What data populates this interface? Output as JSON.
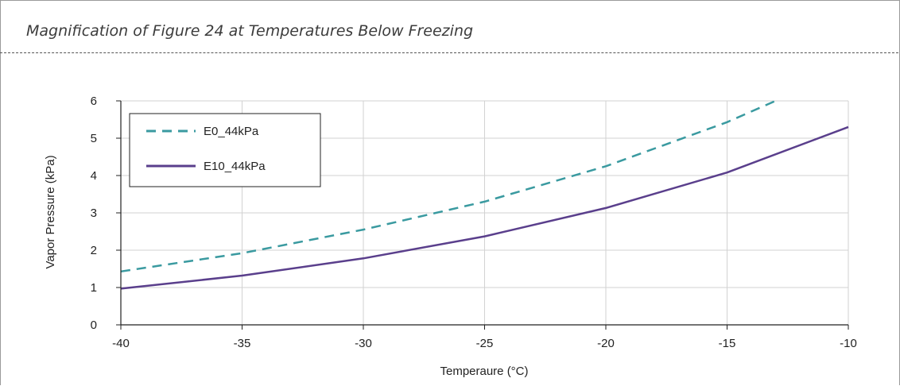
{
  "caption": "Magnification of Figure 24 at Temperatures Below Freezing",
  "chart_data": {
    "type": "line",
    "xlabel": "Temperaure (°C)",
    "ylabel": "Vapor Pressure (kPa)",
    "xlim": [
      -40,
      -10
    ],
    "ylim": [
      0,
      6
    ],
    "x_ticks": [
      -40,
      -35,
      -30,
      -25,
      -20,
      -15,
      -10
    ],
    "y_ticks": [
      0,
      1,
      2,
      3,
      4,
      5,
      6
    ],
    "grid": true,
    "legend_position": "top-left",
    "series": [
      {
        "name": "E0_44kPa",
        "color": "#3a9aa0",
        "style": "dashed",
        "points": [
          [
            -40,
            1.43
          ],
          [
            -35,
            1.92
          ],
          [
            -30,
            2.55
          ],
          [
            -25,
            3.3
          ],
          [
            -20,
            4.25
          ],
          [
            -15,
            5.43
          ],
          [
            -13,
            6.0
          ]
        ]
      },
      {
        "name": "E10_44kPa",
        "color": "#5a3f8c",
        "style": "solid",
        "points": [
          [
            -40,
            0.97
          ],
          [
            -35,
            1.32
          ],
          [
            -30,
            1.78
          ],
          [
            -25,
            2.37
          ],
          [
            -20,
            3.13
          ],
          [
            -15,
            4.08
          ],
          [
            -10,
            5.3
          ]
        ]
      }
    ]
  }
}
